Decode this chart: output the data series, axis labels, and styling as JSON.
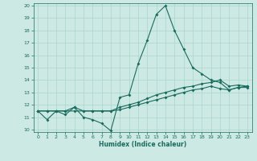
{
  "xlabel": "Humidex (Indice chaleur)",
  "bg_color": "#cce9e4",
  "grid_color": "#aad4ce",
  "line_color": "#1a6b5e",
  "xlim": [
    -0.5,
    23.5
  ],
  "ylim": [
    9.8,
    20.2
  ],
  "xticks": [
    0,
    1,
    2,
    3,
    4,
    5,
    6,
    7,
    8,
    9,
    10,
    11,
    12,
    13,
    14,
    15,
    16,
    17,
    18,
    19,
    20,
    21,
    22,
    23
  ],
  "yticks": [
    10,
    11,
    12,
    13,
    14,
    15,
    16,
    17,
    18,
    19,
    20
  ],
  "line1_x": [
    0,
    1,
    2,
    3,
    4,
    5,
    6,
    7,
    8,
    9,
    10,
    11,
    12,
    13,
    14,
    15,
    16,
    17,
    18,
    19,
    20,
    21,
    22,
    23
  ],
  "line1_y": [
    11.5,
    10.8,
    11.5,
    11.2,
    11.8,
    11.0,
    10.8,
    10.5,
    9.9,
    12.6,
    12.8,
    15.3,
    17.2,
    19.3,
    20.0,
    18.0,
    16.5,
    15.0,
    14.5,
    14.0,
    13.8,
    13.2,
    13.4,
    13.5
  ],
  "line2_x": [
    0,
    1,
    2,
    3,
    4,
    5,
    6,
    7,
    8,
    9,
    10,
    11,
    12,
    13,
    14,
    15,
    16,
    17,
    18,
    19,
    20,
    21,
    22,
    23
  ],
  "line2_y": [
    11.5,
    11.5,
    11.5,
    11.5,
    11.8,
    11.5,
    11.5,
    11.5,
    11.5,
    11.8,
    12.0,
    12.2,
    12.5,
    12.8,
    13.0,
    13.2,
    13.4,
    13.5,
    13.7,
    13.8,
    14.0,
    13.5,
    13.6,
    13.5
  ],
  "line3_x": [
    0,
    1,
    2,
    3,
    4,
    5,
    6,
    7,
    8,
    9,
    10,
    11,
    12,
    13,
    14,
    15,
    16,
    17,
    18,
    19,
    20,
    21,
    22,
    23
  ],
  "line3_y": [
    11.5,
    11.5,
    11.5,
    11.5,
    11.5,
    11.5,
    11.5,
    11.5,
    11.5,
    11.6,
    11.8,
    12.0,
    12.2,
    12.4,
    12.6,
    12.8,
    13.0,
    13.2,
    13.3,
    13.5,
    13.3,
    13.2,
    13.4,
    13.4
  ],
  "xlabel_fontsize": 5.5,
  "tick_fontsize": 4.5,
  "linewidth": 0.8,
  "markersize": 2.0
}
